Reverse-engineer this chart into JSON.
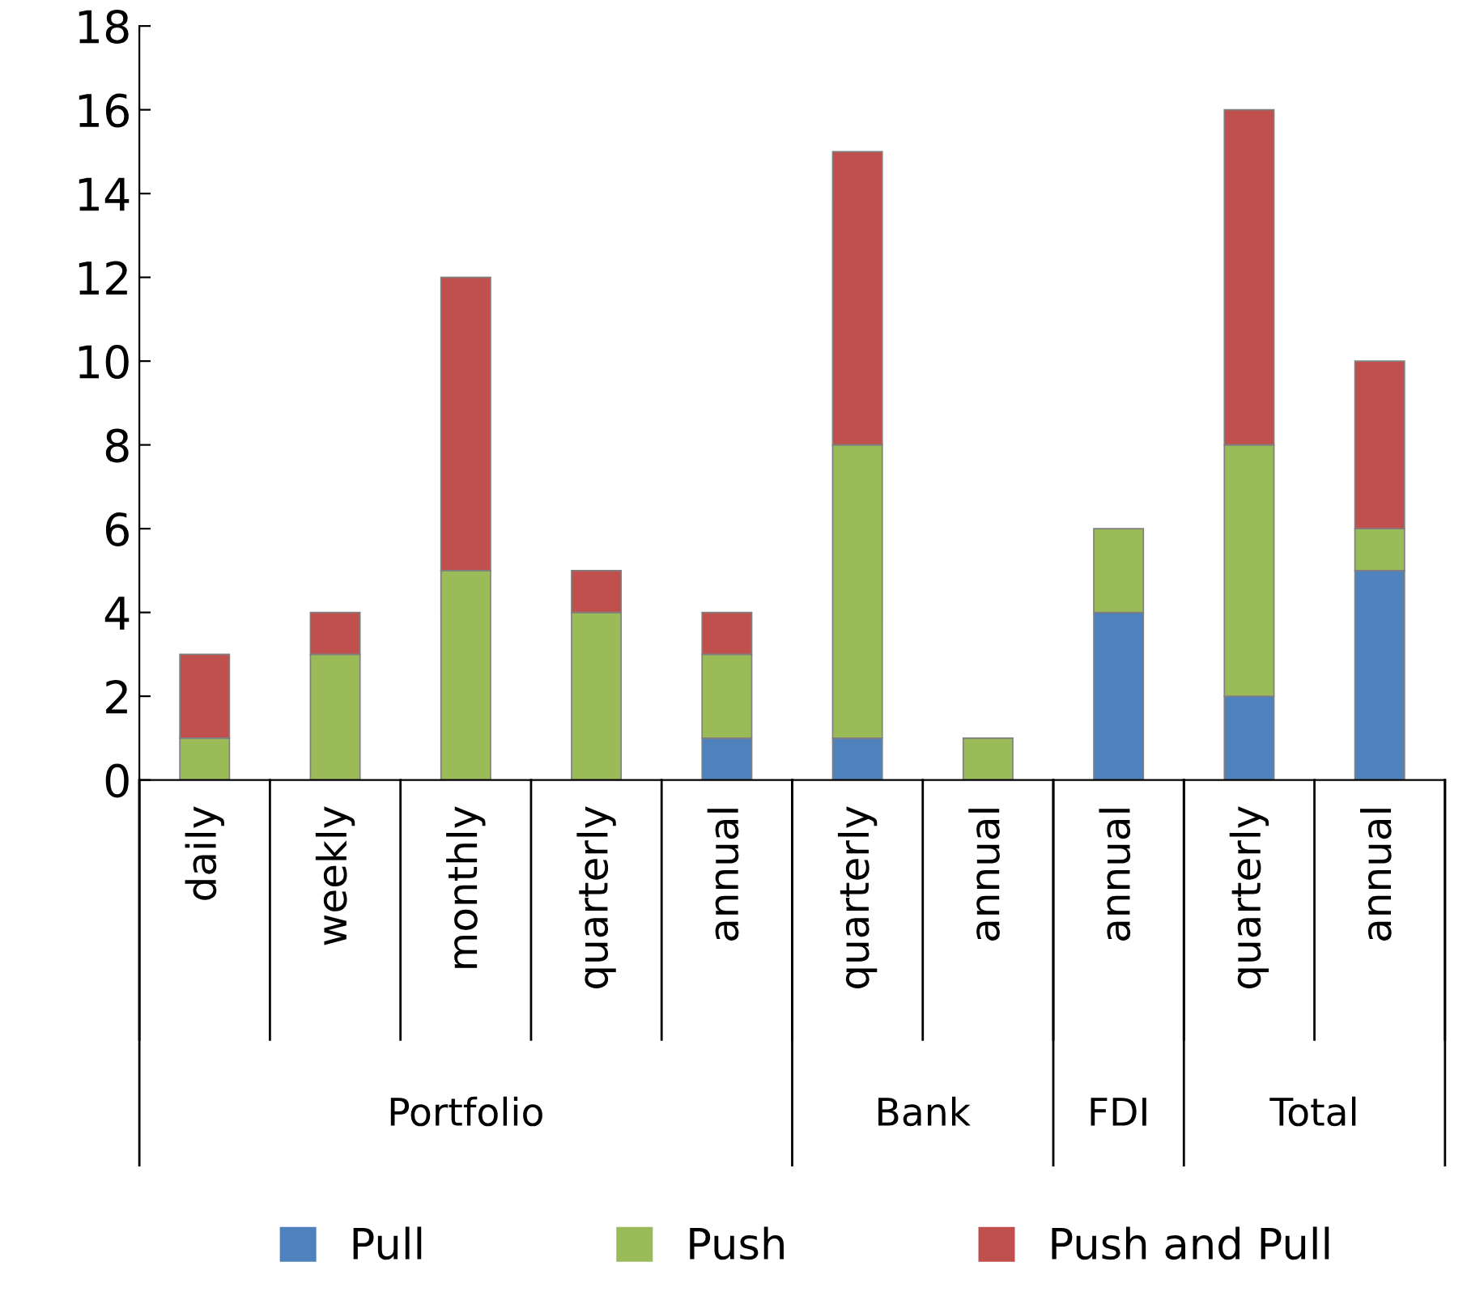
{
  "chart_data": {
    "type": "bar",
    "stacked": true,
    "categories": [
      "daily",
      "weekly",
      "monthly",
      "quarterly",
      "annual",
      "quarterly",
      "annual",
      "annual",
      "quarterly",
      "annual"
    ],
    "series": [
      {
        "name": "Pull",
        "color": "#4f81bd",
        "values": [
          0,
          0,
          0,
          0,
          1,
          1,
          0,
          4,
          2,
          5
        ]
      },
      {
        "name": "Push",
        "color": "#9bbb59",
        "values": [
          1,
          3,
          5,
          4,
          2,
          7,
          1,
          2,
          6,
          1
        ]
      },
      {
        "name": "Push and Pull",
        "color": "#c0504d",
        "values": [
          2,
          1,
          7,
          1,
          1,
          7,
          0,
          0,
          8,
          4
        ]
      }
    ],
    "annotations": [
      "Portfolio",
      "Bank",
      "FDI",
      "Total"
    ],
    "ylim": [
      0,
      18
    ],
    "yticks": [
      0,
      2,
      4,
      6,
      8,
      10,
      12,
      14,
      16,
      18
    ],
    "grid": false,
    "legend": "bottom"
  }
}
